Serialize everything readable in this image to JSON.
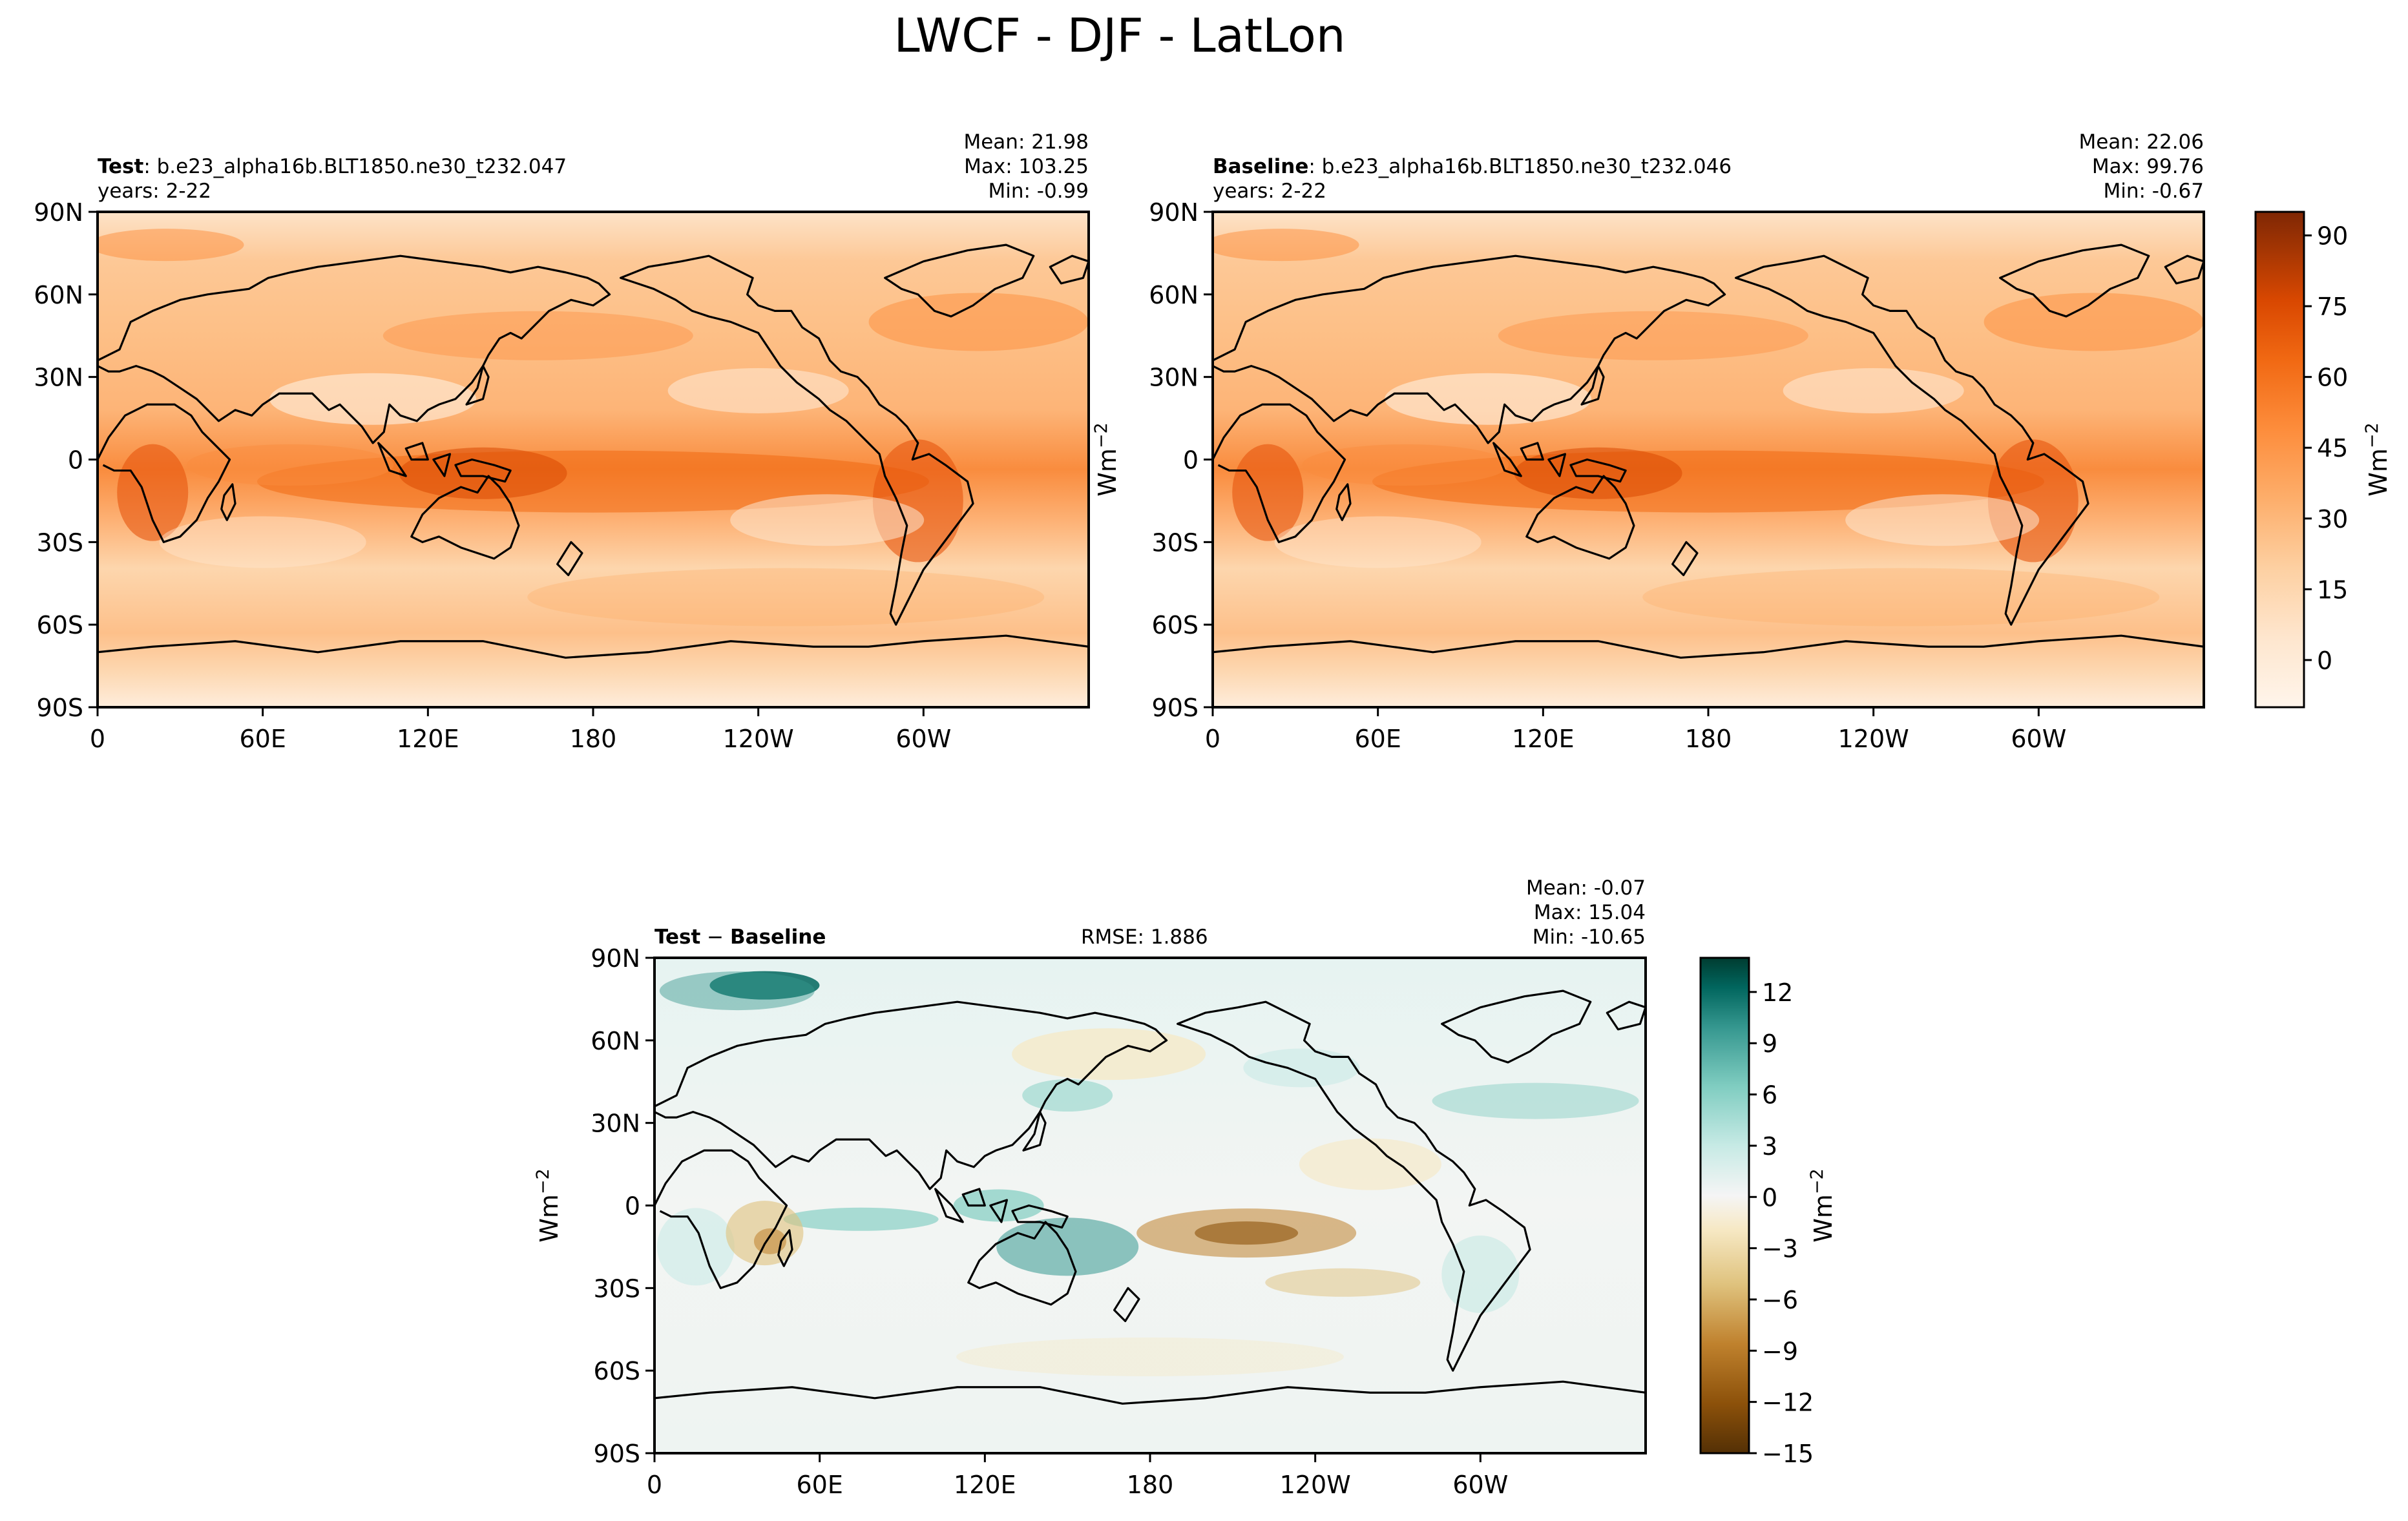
{
  "figure": {
    "suptitle": "LWCF - DJF - LatLon"
  },
  "chart_data": [
    {
      "id": "test",
      "type": "heatmap",
      "title_bold": "Test",
      "title_rest": ": b.e23_alpha16b.BLT1850.ne30_t232.047",
      "subtitle": "years: 2-22",
      "stats": [
        "Mean: 21.98",
        "Max: 103.25",
        "Min: -0.99"
      ],
      "x_ticks": [
        "0",
        "60E",
        "120E",
        "180",
        "120W",
        "60W"
      ],
      "y_ticks": [
        "90N",
        "60N",
        "30N",
        "0",
        "30S",
        "60S",
        "90S"
      ],
      "ylabel": "",
      "xlim": [
        0,
        360
      ],
      "ylim": [
        -90,
        90
      ],
      "colorbar": null
    },
    {
      "id": "baseline",
      "type": "heatmap",
      "title_bold": "Baseline",
      "title_rest": ": b.e23_alpha16b.BLT1850.ne30_t232.046",
      "subtitle": "years: 2-22",
      "stats": [
        "Mean: 22.06",
        "Max: 99.76",
        "Min: -0.67"
      ],
      "x_ticks": [
        "0",
        "60E",
        "120E",
        "180",
        "120W",
        "60W"
      ],
      "y_ticks": [
        "90N",
        "60N",
        "30N",
        "0",
        "30S",
        "60S",
        "90S"
      ],
      "ylabel": "Wm",
      "ylabel_sup": "−2",
      "xlim": [
        0,
        360
      ],
      "ylim": [
        -90,
        90
      ],
      "colorbar": {
        "label": "Wm",
        "label_sup": "−2",
        "range": [
          -10,
          95
        ],
        "ticks": [
          "0",
          "15",
          "30",
          "45",
          "60",
          "75",
          "90"
        ],
        "tick_values": [
          0,
          15,
          30,
          45,
          60,
          75,
          90
        ],
        "colors": [
          "#fff5eb",
          "#fee6ce",
          "#fdd0a2",
          "#fdae6b",
          "#fd8d3c",
          "#f16913",
          "#d94801",
          "#a63603",
          "#7f2704"
        ]
      }
    },
    {
      "id": "diff",
      "type": "heatmap",
      "title_bold": "Test",
      "title_mid": "−",
      "title_bold2": "Baseline",
      "rmse": "RMSE: 1.886",
      "stats": [
        "Mean: -0.07",
        "Max: 15.04",
        "Min: -10.65"
      ],
      "x_ticks": [
        "0",
        "60E",
        "120E",
        "180",
        "120W",
        "60W"
      ],
      "y_ticks": [
        "90N",
        "60N",
        "30N",
        "0",
        "30S",
        "60S",
        "90S"
      ],
      "ylabel": "Wm",
      "ylabel_sup": "−2",
      "xlim": [
        0,
        360
      ],
      "ylim": [
        -90,
        90
      ],
      "colorbar": {
        "label": "Wm",
        "label_sup": "−2",
        "range": [
          -15,
          14
        ],
        "ticks": [
          "12",
          "9",
          "6",
          "3",
          "0",
          "−3",
          "−6",
          "−9",
          "−12",
          "−15"
        ],
        "tick_values": [
          12,
          9,
          6,
          3,
          0,
          -3,
          -6,
          -9,
          -12,
          -15
        ],
        "colors": [
          "#543005",
          "#8c510a",
          "#bf812d",
          "#dfc27d",
          "#f6e8c3",
          "#f5f5f5",
          "#c7eae5",
          "#80cdc1",
          "#35978f",
          "#01665e",
          "#003c30"
        ]
      }
    }
  ]
}
